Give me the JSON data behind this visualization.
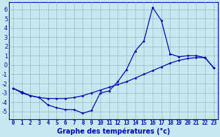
{
  "xlabel": "Graphe des températures (°c)",
  "hours": [
    0,
    1,
    2,
    3,
    4,
    5,
    6,
    7,
    8,
    9,
    10,
    11,
    12,
    13,
    14,
    15,
    16,
    17,
    18,
    19,
    20,
    21,
    22,
    23
  ],
  "line_curve": [
    -2.5,
    -3.0,
    -3.3,
    -3.5,
    -4.3,
    -4.6,
    -4.8,
    -4.8,
    -5.2,
    -4.9,
    -3.0,
    -2.8,
    -1.8,
    -0.5,
    1.5,
    2.6,
    6.2,
    4.8,
    1.2,
    0.9,
    1.0,
    1.0,
    0.8,
    -0.3
  ],
  "line_diag": [
    -2.5,
    -2.9,
    -3.3,
    -3.5,
    -3.6,
    -3.6,
    -3.6,
    -3.5,
    -3.3,
    -3.0,
    -2.7,
    -2.4,
    -2.1,
    -1.8,
    -1.4,
    -1.0,
    -0.6,
    -0.2,
    0.2,
    0.5,
    0.7,
    0.8,
    0.8,
    -0.3
  ],
  "ylim": [
    -5.8,
    6.8
  ],
  "ytick_min": -5,
  "ytick_max": 6,
  "xlim_min": -0.5,
  "xlim_max": 23.5,
  "bg_color": "#c8e8f0",
  "line_color": "#0000bb",
  "grid_color": "#90b8cc",
  "tick_fontsize": 5.5,
  "xlabel_fontsize": 7.0,
  "ytick_fontsize": 6.0
}
